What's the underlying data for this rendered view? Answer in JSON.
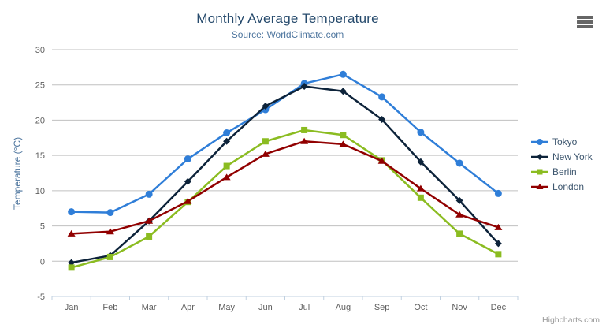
{
  "chart_data": {
    "type": "line",
    "title": "Monthly Average Temperature",
    "subtitle": "Source: WorldClimate.com",
    "xlabel": "",
    "ylabel": "Temperature (°C)",
    "categories": [
      "Jan",
      "Feb",
      "Mar",
      "Apr",
      "May",
      "Jun",
      "Jul",
      "Aug",
      "Sep",
      "Oct",
      "Nov",
      "Dec"
    ],
    "ylim": [
      -5,
      30
    ],
    "yticks": [
      -5,
      0,
      5,
      10,
      15,
      20,
      25,
      30
    ],
    "grid": true,
    "legend_position": "right",
    "series": [
      {
        "name": "Tokyo",
        "color": "#2f7ed8",
        "marker": "circle",
        "values": [
          7.0,
          6.9,
          9.5,
          14.5,
          18.2,
          21.5,
          25.2,
          26.5,
          23.3,
          18.3,
          13.9,
          9.6
        ]
      },
      {
        "name": "New York",
        "color": "#0d233a",
        "marker": "diamond",
        "values": [
          -0.2,
          0.8,
          5.7,
          11.3,
          17.0,
          22.0,
          24.8,
          24.1,
          20.1,
          14.1,
          8.6,
          2.5
        ]
      },
      {
        "name": "Berlin",
        "color": "#8bbc21",
        "marker": "square",
        "values": [
          -0.9,
          0.6,
          3.5,
          8.4,
          13.5,
          17.0,
          18.6,
          17.9,
          14.3,
          9.0,
          3.9,
          1.0
        ]
      },
      {
        "name": "London",
        "color": "#910000",
        "marker": "triangle",
        "values": [
          3.9,
          4.2,
          5.7,
          8.5,
          11.9,
          15.2,
          17.0,
          16.6,
          14.2,
          10.3,
          6.6,
          4.8
        ]
      }
    ],
    "credits": "Highcharts.com",
    "colors": {
      "title": "#274b6d",
      "subtitle": "#4d759e",
      "axis_title": "#4d759e",
      "axis_labels": "#606060",
      "grid_line": "#c0c0c0",
      "axis_line": "#c0d0e0",
      "legend_text": "#3e576f",
      "credits_text": "#999999"
    }
  }
}
